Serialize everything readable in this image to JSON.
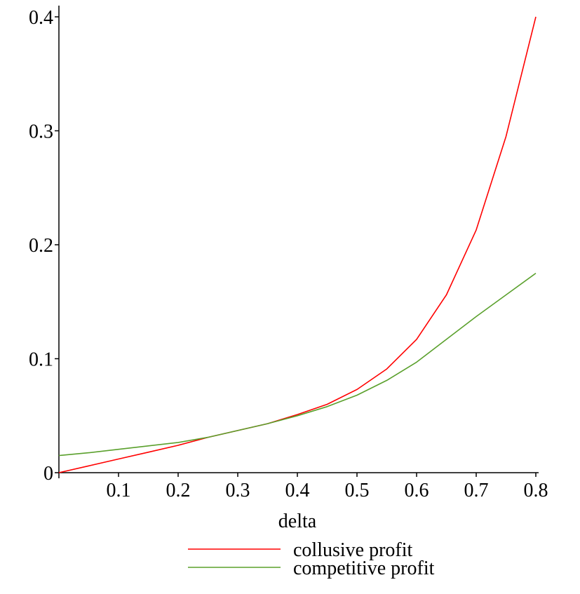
{
  "chart_data": {
    "type": "line",
    "title": "",
    "xlabel": "delta",
    "ylabel": "",
    "xlim": [
      0,
      0.8
    ],
    "ylim": [
      0,
      0.4
    ],
    "x_ticks": [
      "0.1",
      "0.2",
      "0.3",
      "0.4",
      "0.5",
      "0.6",
      "0.7",
      "0.8"
    ],
    "y_ticks": [
      "0",
      "0.1",
      "0.2",
      "0.3",
      "0.4"
    ],
    "grid": false,
    "legend_position": "bottom-center",
    "series": [
      {
        "name": "collusive profit",
        "color": "#ff0000",
        "x": [
          0,
          0.05,
          0.1,
          0.15,
          0.2,
          0.25,
          0.3,
          0.35,
          0.4,
          0.45,
          0.5,
          0.55,
          0.6,
          0.65,
          0.7,
          0.75,
          0.8
        ],
        "y": [
          0,
          0.006,
          0.012,
          0.018,
          0.024,
          0.031,
          0.037,
          0.043,
          0.051,
          0.06,
          0.073,
          0.091,
          0.117,
          0.156,
          0.213,
          0.295,
          0.4
        ]
      },
      {
        "name": "competitive profit",
        "color": "#5aa02c",
        "x": [
          0,
          0.05,
          0.1,
          0.15,
          0.2,
          0.25,
          0.3,
          0.35,
          0.4,
          0.45,
          0.5,
          0.55,
          0.6,
          0.65,
          0.7,
          0.75,
          0.8
        ],
        "y": [
          0.015,
          0.0175,
          0.0205,
          0.0235,
          0.0265,
          0.031,
          0.037,
          0.043,
          0.05,
          0.058,
          0.068,
          0.081,
          0.097,
          0.117,
          0.137,
          0.156,
          0.175
        ]
      }
    ]
  }
}
